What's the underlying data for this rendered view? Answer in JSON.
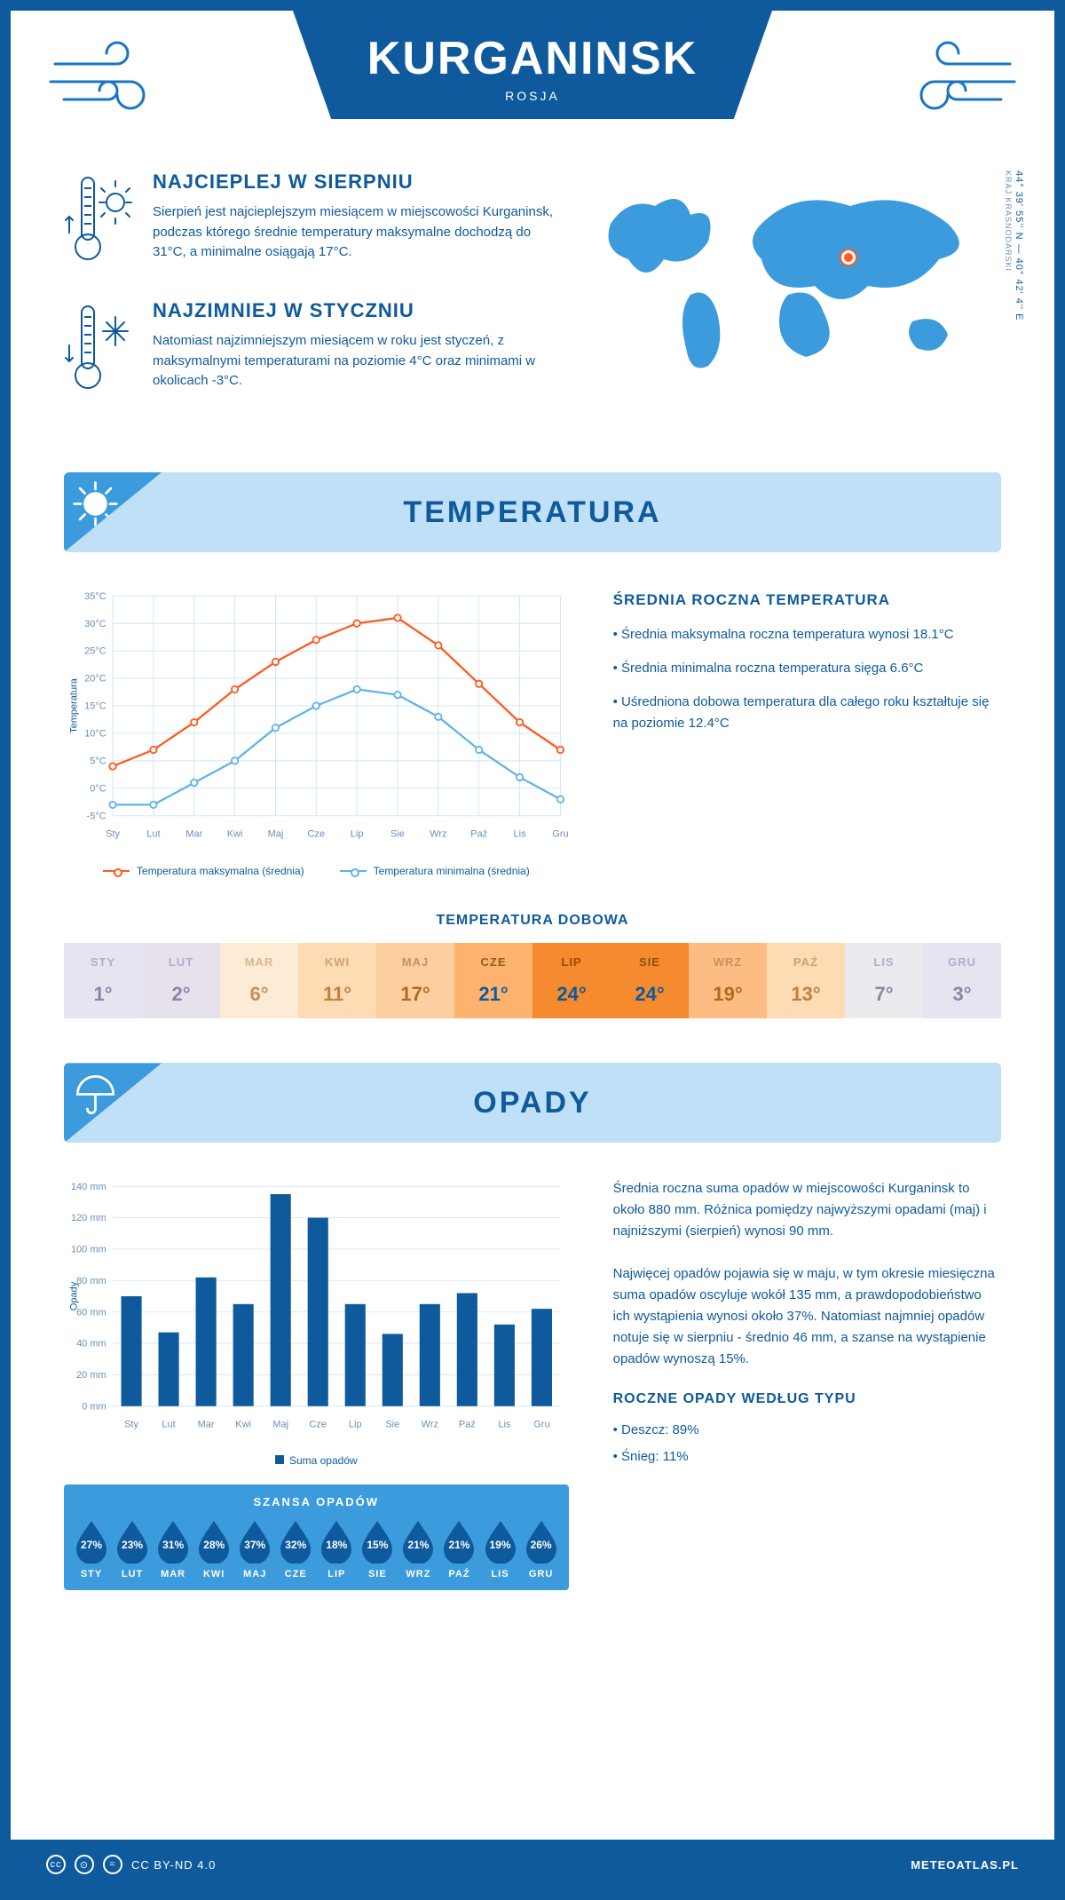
{
  "header": {
    "city": "KURGANINSK",
    "country": "ROSJA"
  },
  "coords": {
    "text": "44° 39' 55'' N — 40° 42' 4'' E",
    "region": "KRAJ KRASNODARSKI"
  },
  "facts": {
    "hot": {
      "title": "NAJCIEPLEJ W SIERPNIU",
      "body": "Sierpień jest najcieplejszym miesiącem w miejscowości Kurganinsk, podczas którego średnie temperatury maksymalne dochodzą do 31°C, a minimalne osiągają 17°C."
    },
    "cold": {
      "title": "NAJZIMNIEJ W STYCZNIU",
      "body": "Natomiast najzimniejszym miesiącem w roku jest styczeń, z maksymalnymi temperaturami na poziomie 4°C oraz minimami w okolicach -3°C."
    }
  },
  "section_temp": {
    "title": "TEMPERATURA",
    "chart": {
      "type": "line",
      "months": [
        "Sty",
        "Lut",
        "Mar",
        "Kwi",
        "Maj",
        "Cze",
        "Lip",
        "Sie",
        "Wrz",
        "Paź",
        "Lis",
        "Gru"
      ],
      "ylim": [
        -5,
        35
      ],
      "ystep": 5,
      "y_unit": "°C",
      "y_title": "Temperatura",
      "grid_color": "#cfe5f5",
      "bg": "#ffffff",
      "series": [
        {
          "name": "Temperatura maksymalna (średnia)",
          "color": "#ff5a1f",
          "values": [
            4,
            7,
            12,
            18,
            23,
            27,
            30,
            31,
            26,
            19,
            12,
            7
          ]
        },
        {
          "name": "Temperatura minimalna (średnia)",
          "color": "#5fb4e8",
          "values": [
            -3,
            -3,
            1,
            5,
            11,
            15,
            18,
            17,
            13,
            7,
            2,
            -2
          ]
        }
      ]
    },
    "avg": {
      "title": "ŚREDNIA ROCZNA TEMPERATURA",
      "lines": [
        "• Średnia maksymalna roczna temperatura wynosi 18.1°C",
        "• Średnia minimalna roczna temperatura sięga 6.6°C",
        "• Uśredniona dobowa temperatura dla całego roku kształtuje się na poziomie 12.4°C"
      ]
    },
    "daily": {
      "title": "TEMPERATURA DOBOWA",
      "months": [
        "STY",
        "LUT",
        "MAR",
        "KWI",
        "MAJ",
        "CZE",
        "LIP",
        "SIE",
        "WRZ",
        "PAŹ",
        "LIS",
        "GRU"
      ],
      "values": [
        "1°",
        "2°",
        "6°",
        "11°",
        "17°",
        "21°",
        "24°",
        "24°",
        "19°",
        "13°",
        "7°",
        "3°"
      ],
      "cell_bg": [
        "#e6e4f0",
        "#e7e1ec",
        "#fdebd6",
        "#fddcb4",
        "#fdcfa0",
        "#fdb26e",
        "#f58a2f",
        "#f58a2f",
        "#fdbd82",
        "#fddcb4",
        "#ece9ef",
        "#e6e4f0"
      ],
      "cell_fg": [
        "#8a85a8",
        "#8a85a8",
        "#c09060",
        "#c08040",
        "#b06a20",
        "#0e5a9c",
        "#0e5a9c",
        "#0e5a9c",
        "#b06a20",
        "#c08040",
        "#8a85a8",
        "#8a85a8"
      ],
      "cell_header_fg": [
        "#b0accc",
        "#b0accc",
        "#d8b890",
        "#d0a070",
        "#c89060",
        "#8c6020",
        "#8c5010",
        "#8c5010",
        "#c89060",
        "#d0a070",
        "#b0accc",
        "#b0accc"
      ]
    }
  },
  "section_precip": {
    "title": "OPADY",
    "chart": {
      "type": "bar",
      "months": [
        "Sty",
        "Lut",
        "Mar",
        "Kwi",
        "Maj",
        "Cze",
        "Lip",
        "Sie",
        "Wrz",
        "Paź",
        "Lis",
        "Gru"
      ],
      "values": [
        70,
        47,
        82,
        65,
        135,
        120,
        65,
        46,
        65,
        72,
        52,
        62
      ],
      "ylim": [
        0,
        140
      ],
      "ystep": 20,
      "y_unit": " mm",
      "y_title": "Opady",
      "bar_color": "#0e5a9c",
      "grid_color": "#cfe5f5",
      "legend": "Suma opadów"
    },
    "text": [
      "Średnia roczna suma opadów w miejscowości Kurganinsk to około 880 mm. Różnica pomiędzy najwyższymi opadami (maj) i najniższymi (sierpień) wynosi 90 mm.",
      "Najwięcej opadów pojawia się w maju, w tym okresie miesięczna suma opadów oscyluje wokół 135 mm, a prawdopodobieństwo ich wystąpienia wynosi około 37%. Natomiast najmniej opadów notuje się w sierpniu - średnio 46 mm, a szanse na wystąpienie opadów wynoszą 15%."
    ],
    "chance": {
      "title": "SZANSA OPADÓW",
      "months": [
        "STY",
        "LUT",
        "MAR",
        "KWI",
        "MAJ",
        "CZE",
        "LIP",
        "SIE",
        "WRZ",
        "PAŹ",
        "LIS",
        "GRU"
      ],
      "values": [
        "27%",
        "23%",
        "31%",
        "28%",
        "37%",
        "32%",
        "18%",
        "15%",
        "21%",
        "21%",
        "19%",
        "26%"
      ],
      "drop_fill": "#0e5a9c",
      "bg": "#3b9bdc"
    },
    "types": {
      "title": "ROCZNE OPADY WEDŁUG TYPU",
      "lines": [
        "• Deszcz: 89%",
        "• Śnieg: 11%"
      ]
    }
  },
  "footer": {
    "license": "CC BY-ND 4.0",
    "site": "METEOATLAS.PL"
  }
}
